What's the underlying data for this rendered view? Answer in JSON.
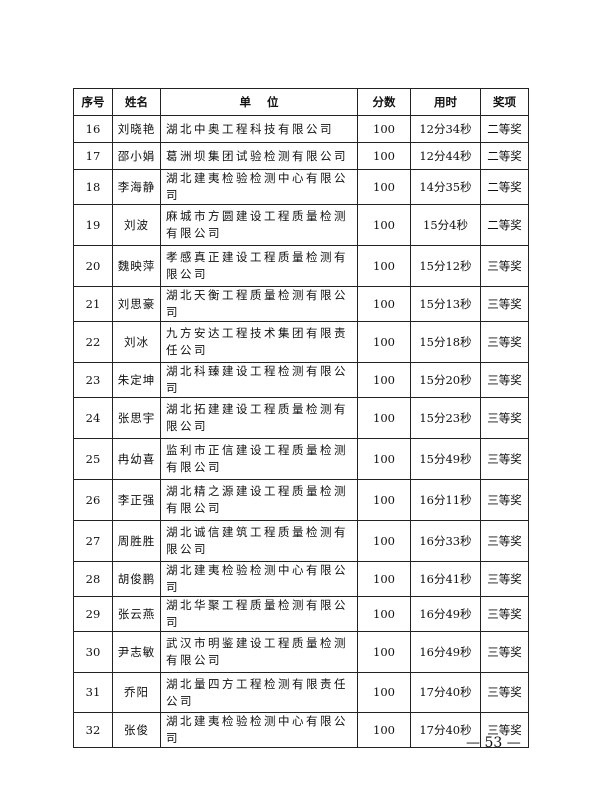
{
  "table": {
    "headers": [
      "序号",
      "姓名",
      "单    位",
      "分数",
      "用时",
      "奖项"
    ],
    "rows": [
      {
        "no": "16",
        "name": "刘晓艳",
        "unit": "湖北中奥工程科技有限公司",
        "score": "100",
        "time": "12分34秒",
        "award": "二等奖",
        "h": "s"
      },
      {
        "no": "17",
        "name": "邵小娟",
        "unit": "葛洲坝集团试验检测有限公司",
        "score": "100",
        "time": "12分44秒",
        "award": "二等奖",
        "h": "s"
      },
      {
        "no": "18",
        "name": "李海静",
        "unit": "湖北建夷检验检测中心有限公司",
        "score": "100",
        "time": "14分35秒",
        "award": "二等奖",
        "h": "s"
      },
      {
        "no": "19",
        "name": "刘波",
        "unit": "麻城市方圆建设工程质量检测有限公司",
        "score": "100",
        "time": "15分4秒",
        "award": "二等奖",
        "h": "d"
      },
      {
        "no": "20",
        "name": "魏映萍",
        "unit": "孝感真正建设工程质量检测有限公司",
        "score": "100",
        "time": "15分12秒",
        "award": "三等奖",
        "h": "d"
      },
      {
        "no": "21",
        "name": "刘思豪",
        "unit": "湖北天衡工程质量检测有限公司",
        "score": "100",
        "time": "15分13秒",
        "award": "三等奖",
        "h": "s"
      },
      {
        "no": "22",
        "name": "刘冰",
        "unit": "九方安达工程技术集团有限责任公司",
        "score": "100",
        "time": "15分18秒",
        "award": "三等奖",
        "h": "d"
      },
      {
        "no": "23",
        "name": "朱定坤",
        "unit": "湖北科臻建设工程检测有限公司",
        "score": "100",
        "time": "15分20秒",
        "award": "三等奖",
        "h": "s"
      },
      {
        "no": "24",
        "name": "张思宇",
        "unit": "湖北拓建建设工程质量检测有限公司",
        "score": "100",
        "time": "15分23秒",
        "award": "三等奖",
        "h": "d"
      },
      {
        "no": "25",
        "name": "冉幼喜",
        "unit": "监利市正信建设工程质量检测有限公司",
        "score": "100",
        "time": "15分49秒",
        "award": "三等奖",
        "h": "d"
      },
      {
        "no": "26",
        "name": "李正强",
        "unit": "湖北精之源建设工程质量检测有限公司",
        "score": "100",
        "time": "16分11秒",
        "award": "三等奖",
        "h": "d"
      },
      {
        "no": "27",
        "name": "周胜胜",
        "unit": "湖北诚信建筑工程质量检测有限公司",
        "score": "100",
        "time": "16分33秒",
        "award": "三等奖",
        "h": "d"
      },
      {
        "no": "28",
        "name": "胡俊鹏",
        "unit": "湖北建夷检验检测中心有限公司",
        "score": "100",
        "time": "16分41秒",
        "award": "三等奖",
        "h": "s"
      },
      {
        "no": "29",
        "name": "张云燕",
        "unit": "湖北华聚工程质量检测有限公司",
        "score": "100",
        "time": "16分49秒",
        "award": "三等奖",
        "h": "s"
      },
      {
        "no": "30",
        "name": "尹志敏",
        "unit": "武汉市明鉴建设工程质量检测有限公司",
        "score": "100",
        "time": "16分49秒",
        "award": "三等奖",
        "h": "d"
      },
      {
        "no": "31",
        "name": "乔阳",
        "unit": "湖北量四方工程检测有限责任公司",
        "score": "100",
        "time": "17分40秒",
        "award": "三等奖",
        "h": "t"
      },
      {
        "no": "32",
        "name": "张俊",
        "unit": "湖北建夷检验检测中心有限公司",
        "score": "100",
        "time": "17分40秒",
        "award": "三等奖",
        "h": "s"
      }
    ]
  },
  "page_number": "— 53 —"
}
